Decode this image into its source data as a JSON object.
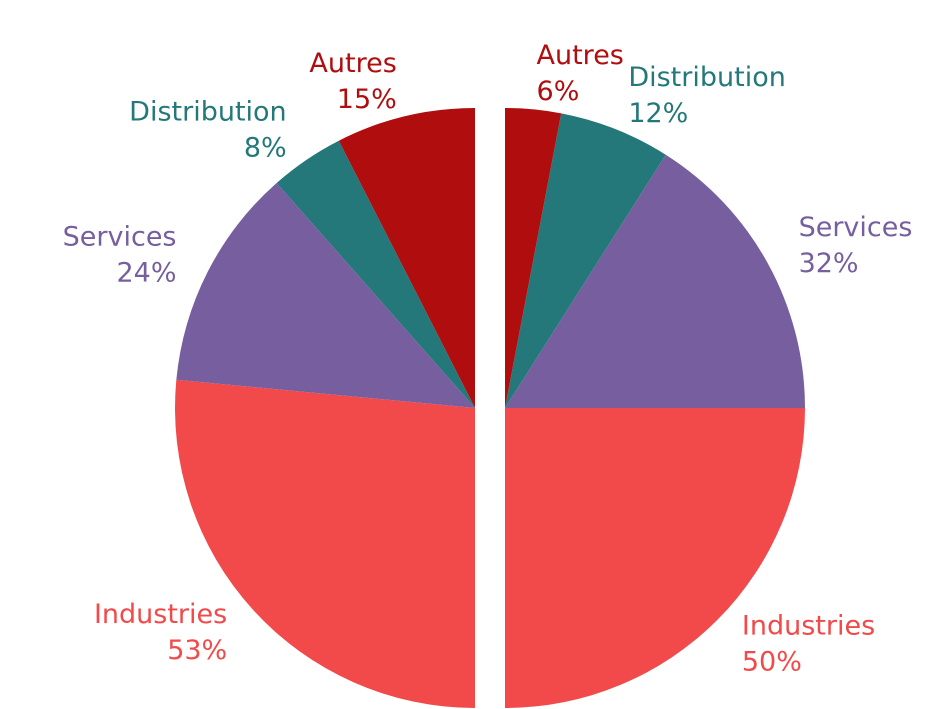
{
  "chart_data": [
    {
      "type": "pie",
      "categories": [
        "Industries",
        "Services",
        "Distribution",
        "Autres"
      ],
      "values": [
        53,
        24,
        8,
        15
      ],
      "value_labels": [
        "53%",
        "24%",
        "8%",
        "15%"
      ],
      "colors": [
        "#f24a4b",
        "#775f9f",
        "#24787a",
        "#b00d0e"
      ]
    },
    {
      "type": "pie",
      "categories": [
        "Industries",
        "Services",
        "Distribution",
        "Autres"
      ],
      "values": [
        50,
        32,
        12,
        6
      ],
      "value_labels": [
        "50%",
        "32%",
        "12%",
        "6%"
      ],
      "colors": [
        "#f24a4b",
        "#775f9f",
        "#24787a",
        "#b00d0e"
      ]
    }
  ]
}
